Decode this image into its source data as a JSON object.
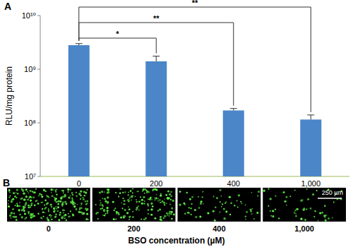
{
  "chart_data": {
    "type": "bar",
    "panel_label": "A",
    "ylabel": "RLU/mg protein",
    "categories": [
      "0",
      "200",
      "400",
      "1,000"
    ],
    "values": [
      2800000000,
      1400000000,
      170000000,
      115000000
    ],
    "errors": [
      200000000,
      350000000,
      15000000,
      25000000
    ],
    "color": "#4a86c8",
    "log": "y",
    "grid": false,
    "ylim": [
      10000000,
      10000000000
    ],
    "yticks": [
      {
        "value": 10000000,
        "label": "10⁷"
      },
      {
        "value": 100000000,
        "label": "10⁸"
      },
      {
        "value": 1000000000,
        "label": "10⁹"
      },
      {
        "value": 10000000000,
        "label": "10¹⁰"
      }
    ],
    "annotations": [
      {
        "from": "0",
        "to": "1,000",
        "label": "**"
      },
      {
        "from": "0",
        "to": "400",
        "label": "**"
      },
      {
        "from": "0",
        "to": "200",
        "label": "*"
      }
    ]
  },
  "micrographs": {
    "panel_label": "B",
    "images": [
      "0",
      "200",
      "400",
      "1,000"
    ],
    "scale_bar": "250 µm",
    "xlabel": "BSO concentration (µM)"
  }
}
